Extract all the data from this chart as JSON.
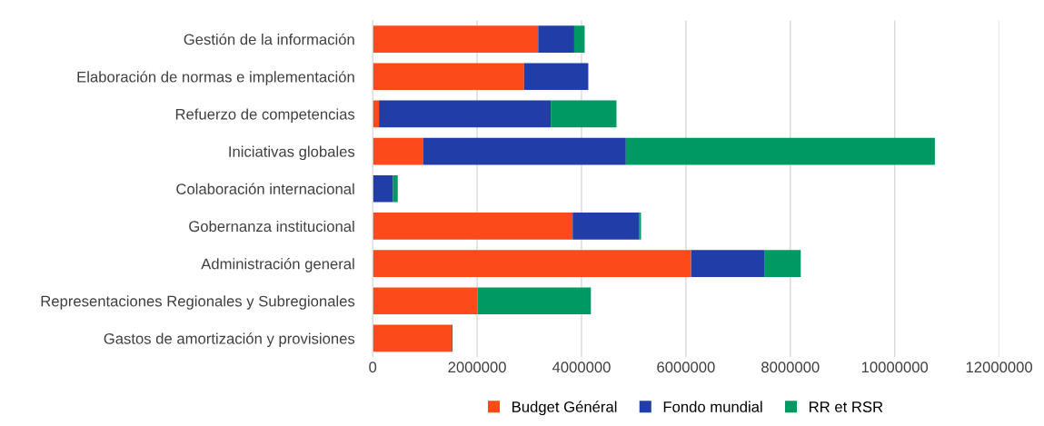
{
  "chart_data": {
    "type": "bar",
    "orientation": "horizontal",
    "stacked": true,
    "categories": [
      "Gestión de la información",
      "Elaboración de normas e implementación",
      "Refuerzo de competencias",
      "Iniciativas globales",
      "Colaboración internacional",
      "Gobernanza institucional",
      "Administración general",
      "Representaciones Regionales y Subregionales",
      "Gastos de amortización y provisiones"
    ],
    "series": [
      {
        "name": "Budget Général",
        "color": "#fc4a1a",
        "values": [
          3170000,
          2900000,
          120000,
          970000,
          0,
          3830000,
          6100000,
          2010000,
          1510000
        ]
      },
      {
        "name": "Fondo mundial",
        "color": "#213ea8",
        "values": [
          690000,
          1230000,
          3290000,
          3880000,
          390000,
          1270000,
          1400000,
          0,
          0
        ]
      },
      {
        "name": "RR et RSR",
        "color": "#009963",
        "values": [
          200000,
          0,
          1260000,
          5920000,
          90000,
          40000,
          700000,
          2170000,
          20000
        ]
      }
    ],
    "xlim": [
      0,
      12000000
    ],
    "xticks": [
      0,
      2000000,
      4000000,
      6000000,
      8000000,
      10000000,
      12000000
    ],
    "grid": "x",
    "legend": "bottom"
  }
}
